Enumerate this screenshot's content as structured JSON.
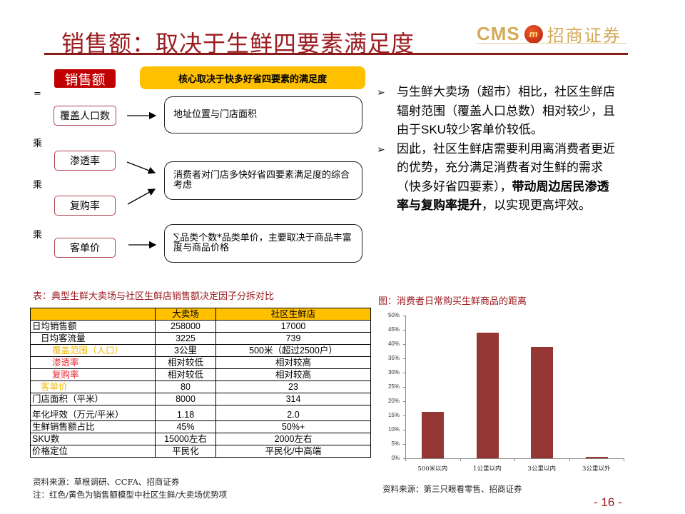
{
  "header": {
    "title": "销售额：取决于生鲜四要素满足度",
    "logo_text": "CMS",
    "logo_badge": "m",
    "logo_cn": "招商证券"
  },
  "diagram": {
    "sales_label": "销售额",
    "core_label": "核心取决于快多好省四要素的满足度",
    "equals": "=",
    "multiply": "乘",
    "factors": [
      "覆盖人口数",
      "渗透率",
      "复购率",
      "客单价"
    ],
    "descriptions": [
      "地址位置与门店面积",
      "消费者对门店多快好省四要素满足度的综合考虑",
      "∑品类个数*品类单价，主要取决于商品丰富度与商品价格"
    ]
  },
  "bullets": {
    "items": [
      {
        "text": "与生鲜大卖场（超市）相比，社区生鲜店辐射范围（覆盖人口总数）相对较少，且由于SKU较少客单价较低。",
        "bold": ""
      },
      {
        "text": "因此，社区生鲜店需要利用离消费者更近的优势，充分满足消费者对生鲜的需求（快多好省四要素），",
        "bold": "带动周边居民渗透率与复购率提升",
        "tail": "，以实现更高坪效。"
      }
    ],
    "arrow_glyph": "➢"
  },
  "table": {
    "caption": "表：典型生鲜大卖场与社区生鲜店销售额决定因子分拆对比",
    "headers": [
      "",
      "大卖场",
      "社区生鲜店"
    ],
    "rows": [
      {
        "label": "日均销售额",
        "hyper": "258000",
        "community": "17000"
      },
      {
        "label": "日均客流量",
        "hyper": "3225",
        "community": "739"
      },
      {
        "label": "覆盖范围（人口）",
        "hyper": "3公里",
        "community": "500米（超过2500户）"
      },
      {
        "label": "渗透率",
        "hyper": "相对较低",
        "community": "相对较高"
      },
      {
        "label": "复购率",
        "hyper": "相对较低",
        "community": "相对较高"
      },
      {
        "label": "客单价",
        "hyper": "80",
        "community": "23"
      },
      {
        "label": "门店面积（平米）",
        "hyper": "8000",
        "community": "314"
      },
      {
        "label": "年化坪效（万元/平米）",
        "hyper": "1.18",
        "community": "2.0"
      },
      {
        "label": "生鲜销售额占比",
        "hyper": "45%",
        "community": "50%+"
      },
      {
        "label": "SKU数",
        "hyper": "15000左右",
        "community": "2000左右"
      },
      {
        "label": "价格定位",
        "hyper": "平民化",
        "community": "平民化/中高端"
      }
    ],
    "source": "资料来源：草根调研、CCFA、招商证券",
    "note": "注：红色/黄色为销售额模型中社区生鲜/大卖场优势项",
    "colors": {
      "yellow": "#f5b800",
      "red": "#e8202a",
      "header_bg": "#ffc000"
    }
  },
  "chart_data": {
    "type": "bar",
    "title": "图：消费者日常购买生鲜商品的距离",
    "categories": [
      "500米以内",
      "1公里以内",
      "3公里以内",
      "3公里以外"
    ],
    "values": [
      16.2,
      44,
      39,
      0.6
    ],
    "yticks": [
      "50%",
      "45%",
      "40%",
      "35%",
      "30%",
      "25%",
      "20%",
      "15%",
      "10%",
      "5%",
      "0%"
    ],
    "ylim": [
      0,
      50
    ],
    "xlabel": "",
    "ylabel": "",
    "grid": false,
    "bar_color": "#943634",
    "source": "资料来源：第三只眼看零售、招商证券"
  },
  "footer": {
    "page_number": "- 16 -"
  }
}
